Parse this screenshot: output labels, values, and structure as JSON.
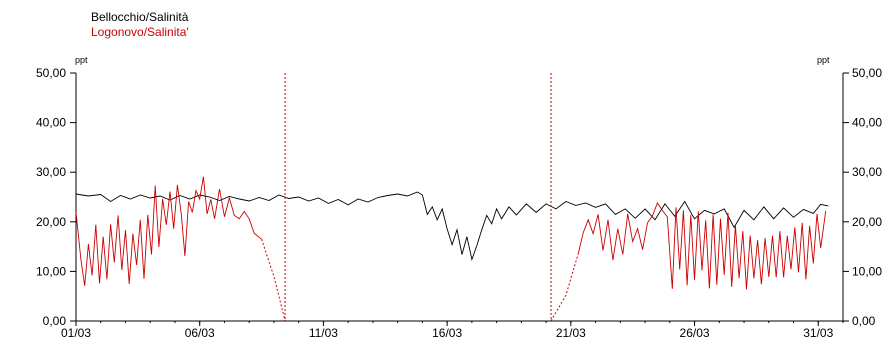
{
  "chart_data": {
    "type": "line",
    "legend": [
      {
        "name": "Bellocchio/Salinità",
        "color": "#000000"
      },
      {
        "name": "Logonovo/Salinita'",
        "color": "#cc0000"
      }
    ],
    "legend_placement": "top-left",
    "unit_left": "ppt",
    "unit_right": "ppt",
    "ylim": [
      0,
      50
    ],
    "y_ticks": [
      "0,00",
      "10,00",
      "20,00",
      "30,00",
      "40,00",
      "50,00"
    ],
    "x_ticks": [
      {
        "day": 1,
        "label": "01/03"
      },
      {
        "day": 6,
        "label": "06/03"
      },
      {
        "day": 11,
        "label": "11/03"
      },
      {
        "day": 16,
        "label": "16/03"
      },
      {
        "day": 21,
        "label": "21/03"
      },
      {
        "day": 26,
        "label": "26/03"
      },
      {
        "day": 31,
        "label": "31/03"
      }
    ],
    "xlim_day": [
      1,
      32
    ],
    "grid": false,
    "series": [
      {
        "name": "Bellocchio/Salinità",
        "color": "#000000",
        "points": [
          [
            1.0,
            25.6
          ],
          [
            1.5,
            25.2
          ],
          [
            2.0,
            25.5
          ],
          [
            2.4,
            24.1
          ],
          [
            2.8,
            25.3
          ],
          [
            3.2,
            24.6
          ],
          [
            3.6,
            25.4
          ],
          [
            4.0,
            24.8
          ],
          [
            4.4,
            25.2
          ],
          [
            4.8,
            24.4
          ],
          [
            5.2,
            25.3
          ],
          [
            5.6,
            24.6
          ],
          [
            6.0,
            25.4
          ],
          [
            6.4,
            25.0
          ],
          [
            6.8,
            24.3
          ],
          [
            7.2,
            25.1
          ],
          [
            7.6,
            24.6
          ],
          [
            8.0,
            24.2
          ],
          [
            8.4,
            24.9
          ],
          [
            8.8,
            24.3
          ],
          [
            9.2,
            25.4
          ],
          [
            9.6,
            24.7
          ],
          [
            10.0,
            25.0
          ],
          [
            10.4,
            24.2
          ],
          [
            10.8,
            24.8
          ],
          [
            11.2,
            23.7
          ],
          [
            11.6,
            24.5
          ],
          [
            12.0,
            23.4
          ],
          [
            12.4,
            24.6
          ],
          [
            12.8,
            24.0
          ],
          [
            13.2,
            24.9
          ],
          [
            13.6,
            25.3
          ],
          [
            14.0,
            25.6
          ],
          [
            14.4,
            25.2
          ],
          [
            14.8,
            26.0
          ],
          [
            15.0,
            25.4
          ],
          [
            15.2,
            21.5
          ],
          [
            15.4,
            23.0
          ],
          [
            15.6,
            20.4
          ],
          [
            15.8,
            22.6
          ],
          [
            16.0,
            18.6
          ],
          [
            16.2,
            15.4
          ],
          [
            16.4,
            18.4
          ],
          [
            16.6,
            13.4
          ],
          [
            16.8,
            17.0
          ],
          [
            17.0,
            12.4
          ],
          [
            17.2,
            15.2
          ],
          [
            17.4,
            18.4
          ],
          [
            17.6,
            21.3
          ],
          [
            17.8,
            19.6
          ],
          [
            18.0,
            22.6
          ],
          [
            18.2,
            20.6
          ],
          [
            18.5,
            23.0
          ],
          [
            18.8,
            21.4
          ],
          [
            19.2,
            23.6
          ],
          [
            19.6,
            21.9
          ],
          [
            20.0,
            23.6
          ],
          [
            20.4,
            22.6
          ],
          [
            20.8,
            24.1
          ],
          [
            21.2,
            23.3
          ],
          [
            21.6,
            23.8
          ],
          [
            22.0,
            22.9
          ],
          [
            22.4,
            23.6
          ],
          [
            22.8,
            21.5
          ],
          [
            23.2,
            22.6
          ],
          [
            23.6,
            20.7
          ],
          [
            24.0,
            22.6
          ],
          [
            24.4,
            20.4
          ],
          [
            24.8,
            23.6
          ],
          [
            25.2,
            21.1
          ],
          [
            25.6,
            24.1
          ],
          [
            26.0,
            20.6
          ],
          [
            26.4,
            22.3
          ],
          [
            26.8,
            21.6
          ],
          [
            27.2,
            22.6
          ],
          [
            27.6,
            18.9
          ],
          [
            28.0,
            22.3
          ],
          [
            28.4,
            20.4
          ],
          [
            28.8,
            23.0
          ],
          [
            29.2,
            20.6
          ],
          [
            29.6,
            22.8
          ],
          [
            30.0,
            20.9
          ],
          [
            30.4,
            22.5
          ],
          [
            30.8,
            21.7
          ],
          [
            31.1,
            23.5
          ],
          [
            31.4,
            23.2
          ]
        ]
      },
      {
        "name": "Logonovo/Salinita'",
        "color": "#cc0000",
        "points": [
          [
            1.0,
            22.0
          ],
          [
            1.2,
            12.4
          ],
          [
            1.35,
            7.1
          ],
          [
            1.5,
            15.5
          ],
          [
            1.65,
            9.2
          ],
          [
            1.8,
            19.4
          ],
          [
            1.95,
            7.6
          ],
          [
            2.1,
            17.0
          ],
          [
            2.25,
            8.4
          ],
          [
            2.4,
            19.5
          ],
          [
            2.55,
            11.8
          ],
          [
            2.7,
            21.3
          ],
          [
            2.85,
            10.3
          ],
          [
            3.0,
            18.3
          ],
          [
            3.15,
            7.5
          ],
          [
            3.3,
            17.6
          ],
          [
            3.45,
            11.3
          ],
          [
            3.6,
            20.4
          ],
          [
            3.75,
            8.5
          ],
          [
            3.9,
            21.4
          ],
          [
            4.05,
            13.4
          ],
          [
            4.2,
            27.3
          ],
          [
            4.35,
            14.9
          ],
          [
            4.5,
            24.6
          ],
          [
            4.65,
            19.4
          ],
          [
            4.8,
            26.1
          ],
          [
            4.95,
            18.6
          ],
          [
            5.1,
            27.4
          ],
          [
            5.25,
            21.7
          ],
          [
            5.4,
            13.1
          ],
          [
            5.55,
            24.1
          ],
          [
            5.7,
            21.9
          ],
          [
            5.85,
            26.3
          ],
          [
            6.0,
            24.6
          ],
          [
            6.15,
            29.1
          ],
          [
            6.3,
            21.6
          ],
          [
            6.45,
            24.5
          ],
          [
            6.6,
            20.6
          ],
          [
            6.8,
            26.6
          ],
          [
            7.0,
            21.0
          ],
          [
            7.2,
            24.8
          ],
          [
            7.4,
            21.3
          ],
          [
            7.6,
            20.6
          ],
          [
            7.8,
            22.1
          ],
          [
            8.0,
            20.6
          ],
          [
            8.2,
            17.7
          ],
          [
            8.5,
            16.5
          ],
          [
            9.0,
            9.0
          ],
          [
            9.45,
            0.0
          ],
          [
            9.45,
            50.0
          ],
          [
            9.45,
            0.0
          ],
          [
            20.2,
            50.0
          ],
          [
            20.2,
            0.0
          ],
          [
            20.8,
            5.2
          ],
          [
            21.3,
            13.6
          ],
          [
            21.5,
            17.8
          ],
          [
            21.7,
            20.4
          ],
          [
            21.9,
            17.6
          ],
          [
            22.1,
            21.5
          ],
          [
            22.3,
            14.2
          ],
          [
            22.5,
            20.4
          ],
          [
            22.7,
            12.3
          ],
          [
            22.9,
            18.6
          ],
          [
            23.1,
            13.4
          ],
          [
            23.3,
            21.6
          ],
          [
            23.5,
            16.0
          ],
          [
            23.7,
            18.6
          ],
          [
            23.9,
            14.4
          ],
          [
            24.1,
            19.8
          ],
          [
            24.3,
            21.2
          ],
          [
            24.5,
            23.8
          ],
          [
            24.7,
            22.3
          ],
          [
            24.9,
            21.0
          ],
          [
            25.1,
            6.5
          ],
          [
            25.25,
            22.9
          ],
          [
            25.4,
            10.4
          ],
          [
            25.55,
            22.3
          ],
          [
            25.7,
            7.2
          ],
          [
            25.85,
            21.4
          ],
          [
            26.0,
            8.3
          ],
          [
            26.15,
            22.1
          ],
          [
            26.3,
            10.2
          ],
          [
            26.45,
            20.3
          ],
          [
            26.6,
            6.6
          ],
          [
            26.75,
            21.5
          ],
          [
            26.9,
            7.3
          ],
          [
            27.05,
            20.6
          ],
          [
            27.2,
            9.3
          ],
          [
            27.35,
            21.8
          ],
          [
            27.5,
            6.9
          ],
          [
            27.65,
            19.3
          ],
          [
            27.8,
            8.6
          ],
          [
            27.95,
            18.1
          ],
          [
            28.1,
            6.4
          ],
          [
            28.25,
            17.2
          ],
          [
            28.4,
            8.6
          ],
          [
            28.55,
            16.3
          ],
          [
            28.7,
            7.4
          ],
          [
            28.85,
            16.7
          ],
          [
            29.0,
            8.9
          ],
          [
            29.15,
            17.2
          ],
          [
            29.3,
            8.8
          ],
          [
            29.45,
            18.1
          ],
          [
            29.6,
            8.8
          ],
          [
            29.75,
            17.2
          ],
          [
            29.9,
            10.4
          ],
          [
            30.05,
            18.9
          ],
          [
            30.2,
            9.8
          ],
          [
            30.35,
            19.8
          ],
          [
            30.5,
            8.4
          ],
          [
            30.65,
            19.2
          ],
          [
            30.8,
            11.6
          ],
          [
            30.95,
            21.6
          ],
          [
            31.1,
            14.7
          ],
          [
            31.3,
            22.2
          ]
        ]
      }
    ]
  }
}
